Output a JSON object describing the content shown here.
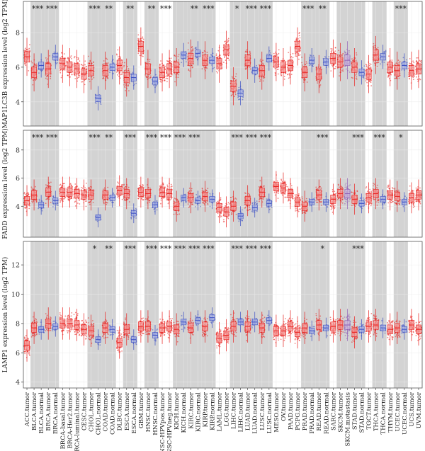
{
  "figure": {
    "x_labels": [
      "ACC.tumor",
      "BLCA.tumor",
      "BLCA.normal",
      "BRCA.tumor",
      "BRCA.normal",
      "BRCA-basal.tumor",
      "BRCA-Her2.tumor",
      "BRCA-luminal.tumor",
      "CESC.tumor",
      "CHOL.tumor",
      "CHOL.normal",
      "COAD.tumor",
      "COAD.normal",
      "DLBC.tumor",
      "ESCA.tumor",
      "ESCA.normal",
      "GBM.tumor",
      "HNSC.tumor",
      "HNSC.normal",
      "HNSC-HPVpos.tumor",
      "HNSC-HPVneg.tumor",
      "KICH.tumor",
      "KICH.normal",
      "KIRC.tumor",
      "KIRC.normal",
      "KIRP.tumor",
      "KIRP.normal",
      "LAML.tumor",
      "LGG.tumor",
      "LIHC.tumor",
      "LIHC.normal",
      "LUAD.tumor",
      "LUAD.normal",
      "LUSC.tumor",
      "LUSC.normal",
      "MESO.tumor",
      "OV.tumor",
      "PAAD.tumor",
      "PCPG.tumor",
      "PRAD.tumor",
      "PRAD.normal",
      "READ.tumor",
      "READ.normal",
      "SARC.tumor",
      "SKCM.tumor",
      "SKCM.metastasis",
      "STAD.tumor",
      "STAD.normal",
      "TGCT.tumor",
      "THCA.tumor",
      "THCA.normal",
      "THYM.tumor",
      "UCEC.tumor",
      "UCEC.normal",
      "UCS.tumor",
      "UVM.tumor"
    ],
    "gray_bands": [
      [
        1,
        2
      ],
      [
        3,
        4
      ],
      [
        9,
        10
      ],
      [
        11,
        12
      ],
      [
        14,
        15
      ],
      [
        17,
        18
      ],
      [
        21,
        22
      ],
      [
        23,
        24
      ],
      [
        25,
        26
      ],
      [
        29,
        30
      ],
      [
        31,
        32
      ],
      [
        33,
        34
      ],
      [
        39,
        40
      ],
      [
        41,
        42
      ],
      [
        44,
        45
      ],
      [
        46,
        47
      ],
      [
        49,
        50
      ],
      [
        52,
        53
      ]
    ],
    "colors": {
      "tumor": "#e8201e",
      "normal": "#3b4fc4",
      "metastasis": "#8e5fb4",
      "band": "#d3d3d3",
      "grid": "#ebebeb"
    }
  },
  "chart_data": [
    {
      "type": "box",
      "ylabel": "MAP1LC3B expression level (log2 TPM)",
      "yticks": [
        4,
        6,
        8
      ],
      "ylim": [
        2.6,
        9.8
      ],
      "significance": [
        {
          "pair": [
            1,
            2
          ],
          "label": "***"
        },
        {
          "pair": [
            3,
            4
          ],
          "label": "***"
        },
        {
          "pair": [
            9,
            10
          ],
          "label": "***"
        },
        {
          "pair": [
            11,
            12
          ],
          "label": "**"
        },
        {
          "pair": [
            14,
            15
          ],
          "label": "**"
        },
        {
          "pair": [
            17,
            18
          ],
          "label": "**"
        },
        {
          "pair": [
            19,
            20
          ],
          "label": "***"
        },
        {
          "pair": [
            23,
            24
          ],
          "label": "**"
        },
        {
          "pair": [
            25,
            26
          ],
          "label": "***"
        },
        {
          "pair": [
            29,
            30
          ],
          "label": "*"
        },
        {
          "pair": [
            31,
            32
          ],
          "label": "***"
        },
        {
          "pair": [
            33,
            34
          ],
          "label": "***"
        },
        {
          "pair": [
            39,
            40
          ],
          "label": "***"
        },
        {
          "pair": [
            41,
            42
          ],
          "label": "**"
        },
        {
          "pair": [
            52,
            53
          ],
          "label": "***"
        }
      ],
      "medians": [
        6.6,
        5.7,
        6.1,
        5.9,
        6.6,
        6.2,
        6.0,
        5.9,
        5.6,
        5.8,
        4.2,
        5.8,
        6.0,
        6.1,
        5.4,
        5.4,
        7.2,
        5.9,
        5.2,
        5.7,
        5.9,
        6.0,
        6.7,
        6.5,
        6.8,
        6.4,
        6.4,
        6.2,
        7.0,
        4.9,
        4.5,
        6.4,
        5.8,
        5.8,
        6.5,
        6.3,
        6.0,
        6.1,
        7.2,
        5.7,
        6.4,
        5.6,
        6.3,
        6.5,
        6.3,
        6.4,
        6.0,
        5.7,
        5.6,
        6.7,
        6.6,
        6.0,
        5.8,
        6.1,
        5.8,
        5.9
      ],
      "annotations": []
    },
    {
      "type": "box",
      "ylabel": "FADD expression level (log2 TPM)",
      "yticks": [
        4,
        6,
        8
      ],
      "ylim": [
        1.8,
        9.4
      ],
      "significance": [
        {
          "pair": [
            1,
            2
          ],
          "label": "***"
        },
        {
          "pair": [
            3,
            4
          ],
          "label": "***"
        },
        {
          "pair": [
            9,
            10
          ],
          "label": "***"
        },
        {
          "pair": [
            11,
            12
          ],
          "label": "**"
        },
        {
          "pair": [
            14,
            15
          ],
          "label": "***"
        },
        {
          "pair": [
            17,
            18
          ],
          "label": "***"
        },
        {
          "pair": [
            19,
            20
          ],
          "label": "***"
        },
        {
          "pair": [
            21,
            22
          ],
          "label": "***"
        },
        {
          "pair": [
            23,
            24
          ],
          "label": "***"
        },
        {
          "pair": [
            29,
            30
          ],
          "label": "***"
        },
        {
          "pair": [
            31,
            32
          ],
          "label": "***"
        },
        {
          "pair": [
            33,
            34
          ],
          "label": "***"
        },
        {
          "pair": [
            41,
            42
          ],
          "label": "***"
        },
        {
          "pair": [
            46,
            47
          ],
          "label": "***"
        },
        {
          "pair": [
            49,
            50
          ],
          "label": "***"
        },
        {
          "pair": [
            52,
            53
          ],
          "label": "*"
        }
      ],
      "medians": [
        4.4,
        4.8,
        4.1,
        5.0,
        4.4,
        5.0,
        5.0,
        4.9,
        4.8,
        4.8,
        3.2,
        4.8,
        4.6,
        5.1,
        4.9,
        3.5,
        5.0,
        4.9,
        4.1,
        5.0,
        4.9,
        4.0,
        4.6,
        4.6,
        4.4,
        4.7,
        4.5,
        3.9,
        3.6,
        4.0,
        3.3,
        4.4,
        3.9,
        5.0,
        4.2,
        5.4,
        5.3,
        4.9,
        4.3,
        4.0,
        4.3,
        4.8,
        4.3,
        4.5,
        4.9,
        4.9,
        4.5,
        4.2,
        4.6,
        4.9,
        4.5,
        4.8,
        4.7,
        4.3,
        4.6,
        4.8
      ],
      "annotations": []
    },
    {
      "type": "box",
      "ylabel": "LAMP1 expression level (log2 TPM)",
      "yticks": [
        4,
        6,
        8,
        10,
        12
      ],
      "ylim": [
        3.6,
        13.6
      ],
      "significance": [
        {
          "pair": [
            9,
            10
          ],
          "label": "*"
        },
        {
          "pair": [
            11,
            12
          ],
          "label": "**"
        },
        {
          "pair": [
            14,
            15
          ],
          "label": "***"
        },
        {
          "pair": [
            17,
            18
          ],
          "label": "***"
        },
        {
          "pair": [
            19,
            20
          ],
          "label": "***"
        },
        {
          "pair": [
            21,
            22
          ],
          "label": "***"
        },
        {
          "pair": [
            23,
            24
          ],
          "label": "***"
        },
        {
          "pair": [
            25,
            26
          ],
          "label": "***"
        },
        {
          "pair": [
            29,
            30
          ],
          "label": "***"
        },
        {
          "pair": [
            31,
            32
          ],
          "label": "***"
        },
        {
          "pair": [
            33,
            34
          ],
          "label": "***"
        },
        {
          "pair": [
            41,
            42
          ],
          "label": "*"
        },
        {
          "pair": [
            46,
            47
          ],
          "label": "***"
        }
      ],
      "medians": [
        6.5,
        7.7,
        7.6,
        8.0,
        7.8,
        8.0,
        8.0,
        7.9,
        7.6,
        7.5,
        6.9,
        7.7,
        7.6,
        6.7,
        7.6,
        6.9,
        7.8,
        7.8,
        7.2,
        7.7,
        7.8,
        7.6,
        8.1,
        7.7,
        8.2,
        7.8,
        8.4,
        7.0,
        7.2,
        7.8,
        8.1,
        7.8,
        8.1,
        7.7,
        8.2,
        7.5,
        7.5,
        7.8,
        7.4,
        7.7,
        7.5,
        7.9,
        7.7,
        7.8,
        7.9,
        7.9,
        7.4,
        7.6,
        7.8,
        7.9,
        7.7,
        7.6,
        7.7,
        7.6,
        7.9,
        7.6
      ],
      "annotations": []
    }
  ]
}
